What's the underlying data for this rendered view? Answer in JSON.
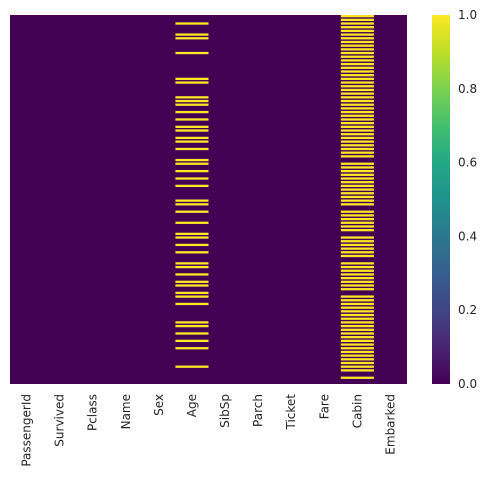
{
  "chart_data": {
    "type": "heatmap",
    "title": "",
    "xlabel": "",
    "ylabel": "",
    "columns": [
      "PassengerId",
      "Survived",
      "Pclass",
      "Name",
      "Sex",
      "Age",
      "SibSp",
      "Parch",
      "Ticket",
      "Fare",
      "Cabin",
      "Embarked"
    ],
    "value_description": "boolean missing-value mask (1 = missing)",
    "n_rows": 100,
    "missing_rows": {
      "PassengerId": [],
      "Survived": [],
      "Pclass": [],
      "Name": [],
      "Sex": [],
      "Age": [
        2,
        5,
        6,
        10,
        17,
        18,
        22,
        23,
        24,
        26,
        28,
        30,
        31,
        33,
        34,
        36,
        39,
        40,
        42,
        44,
        46,
        50,
        51,
        53,
        56,
        59,
        60,
        62,
        64,
        67,
        68,
        70,
        72,
        73,
        75,
        76,
        78,
        83,
        84,
        86,
        88,
        90,
        95
      ],
      "SibSp": [],
      "Parch": [],
      "Ticket": [],
      "Fare": [],
      "Cabin": [
        0,
        1,
        2,
        3,
        4,
        5,
        6,
        7,
        8,
        9,
        10,
        11,
        12,
        13,
        14,
        15,
        16,
        17,
        18,
        19,
        20,
        21,
        22,
        23,
        24,
        25,
        26,
        27,
        28,
        29,
        30,
        31,
        32,
        33,
        34,
        35,
        36,
        37,
        38,
        40,
        41,
        42,
        43,
        44,
        45,
        46,
        47,
        48,
        49,
        50,
        51,
        53,
        54,
        55,
        56,
        57,
        58,
        60,
        61,
        62,
        63,
        64,
        65,
        67,
        68,
        69,
        70,
        71,
        72,
        73,
        74,
        76,
        77,
        78,
        79,
        80,
        81,
        82,
        83,
        84,
        85,
        86,
        87,
        88,
        89,
        90,
        91,
        92,
        93,
        94,
        95,
        96,
        98
      ],
      "Embarked": []
    },
    "colorbar": {
      "colormap": "viridis",
      "range": [
        0.0,
        1.0
      ],
      "ticks": [
        "0.0",
        "0.2",
        "0.4",
        "0.6",
        "0.8",
        "1.0"
      ]
    },
    "colors": {
      "low": "#440154",
      "high": "#fde725"
    }
  }
}
